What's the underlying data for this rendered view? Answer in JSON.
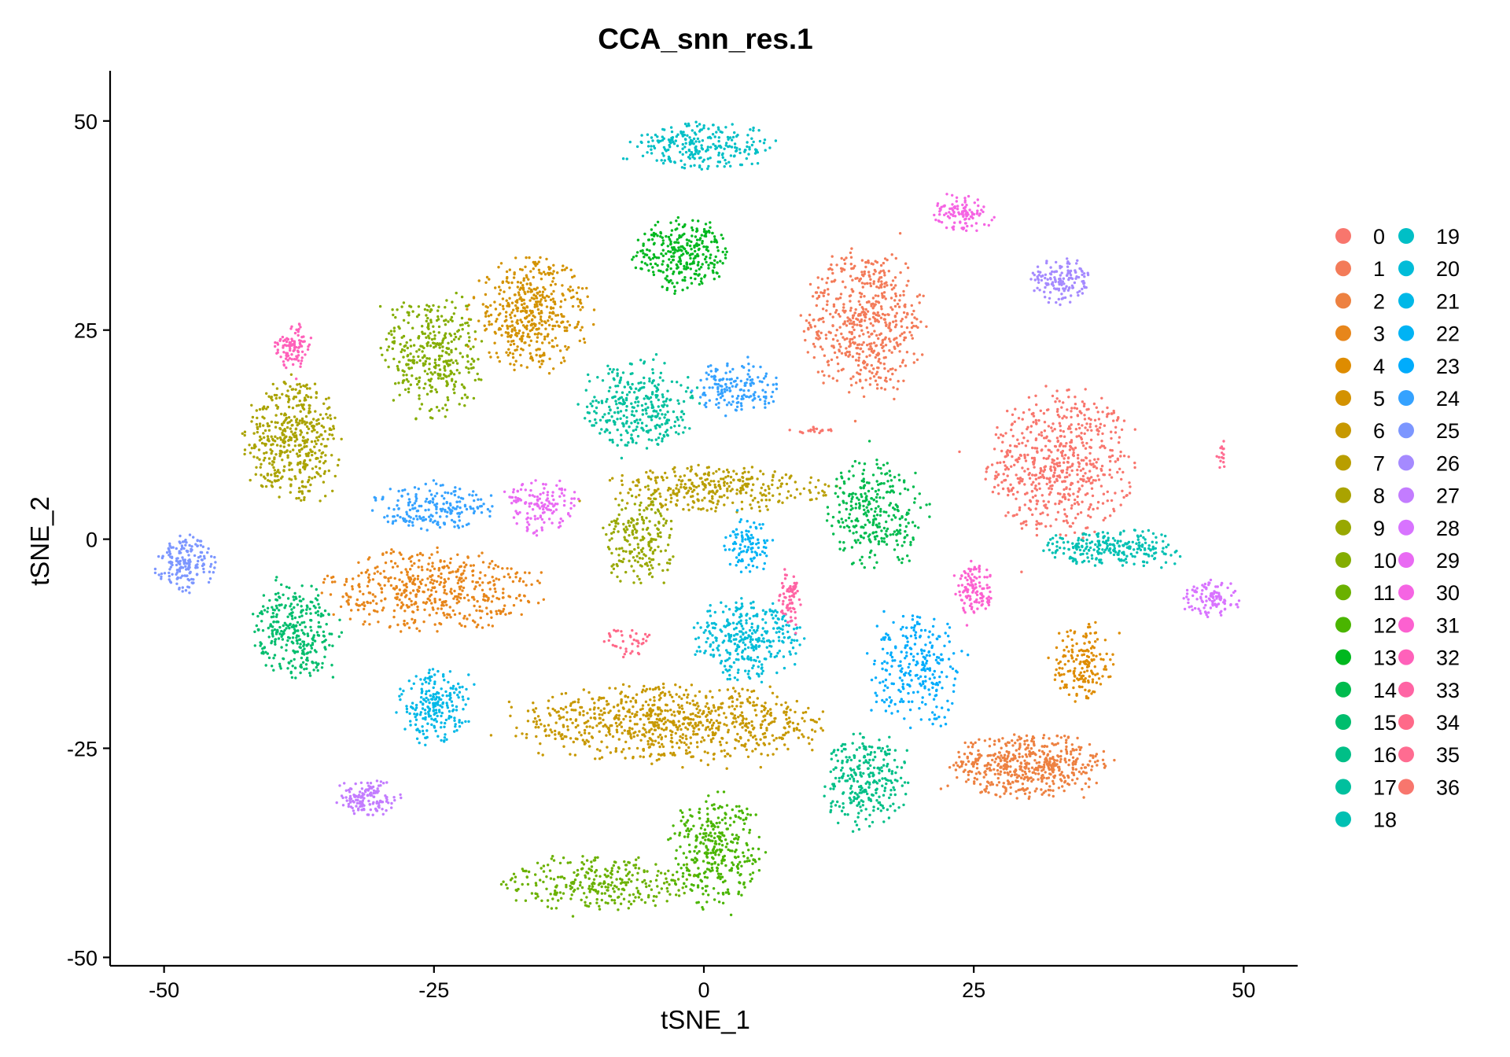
{
  "chart_data": {
    "type": "scatter",
    "title": "CCA_snn_res.1",
    "xlabel": "tSNE_1",
    "ylabel": "tSNE_2",
    "xlim": [
      -55,
      55
    ],
    "ylim": [
      -51,
      56
    ],
    "x_ticks": [
      -50,
      -25,
      0,
      25,
      50
    ],
    "x_tick_labels": [
      "-50",
      "-25",
      "0",
      "25",
      "50"
    ],
    "y_ticks": [
      -50,
      -25,
      0,
      25,
      50
    ],
    "y_tick_labels": [
      "-50",
      "-25",
      "0",
      "25",
      "50"
    ],
    "grid": false,
    "legend_position": "right",
    "legend_columns": 2,
    "series": [
      {
        "name": "0",
        "color": "#F8766D",
        "clusters": [
          {
            "cx": 33,
            "cy": 9,
            "rx": 6,
            "ry": 8,
            "n": 620
          }
        ]
      },
      {
        "name": "1",
        "color": "#F37B59",
        "clusters": [
          {
            "cx": 15,
            "cy": 26,
            "rx": 5,
            "ry": 8,
            "n": 560
          }
        ]
      },
      {
        "name": "2",
        "color": "#ED8141",
        "clusters": [
          {
            "cx": 30,
            "cy": -27,
            "rx": 6.5,
            "ry": 3.5,
            "n": 520
          }
        ]
      },
      {
        "name": "3",
        "color": "#E7861B",
        "clusters": [
          {
            "cx": -25,
            "cy": -6,
            "rx": 9,
            "ry": 4.5,
            "n": 500
          }
        ]
      },
      {
        "name": "4",
        "color": "#DE8C00",
        "clusters": [
          {
            "cx": 35,
            "cy": -15,
            "rx": 2.5,
            "ry": 4.5,
            "n": 170
          }
        ]
      },
      {
        "name": "5",
        "color": "#D39200",
        "clusters": [
          {
            "cx": -16,
            "cy": 27,
            "rx": 5,
            "ry": 6,
            "n": 460
          }
        ]
      },
      {
        "name": "6",
        "color": "#C79800",
        "clusters": [
          {
            "cx": -3,
            "cy": -22,
            "rx": 13,
            "ry": 4,
            "n": 820
          }
        ]
      },
      {
        "name": "7",
        "color": "#B99E00",
        "clusters": [
          {
            "cx": 1,
            "cy": 6,
            "rx": 9,
            "ry": 2.5,
            "n": 330
          }
        ]
      },
      {
        "name": "8",
        "color": "#AAA300",
        "clusters": [
          {
            "cx": -38,
            "cy": 12,
            "rx": 4,
            "ry": 6.5,
            "n": 460
          }
        ]
      },
      {
        "name": "9",
        "color": "#98A800",
        "clusters": [
          {
            "cx": -6,
            "cy": 0,
            "rx": 3,
            "ry": 5,
            "n": 200
          }
        ]
      },
      {
        "name": "10",
        "color": "#84AD00",
        "clusters": [
          {
            "cx": -25,
            "cy": 22,
            "rx": 4,
            "ry": 7,
            "n": 360
          }
        ]
      },
      {
        "name": "11",
        "color": "#6BB100",
        "clusters": [
          {
            "cx": -10,
            "cy": -41,
            "rx": 8,
            "ry": 3,
            "n": 300
          }
        ]
      },
      {
        "name": "12",
        "color": "#4AB500",
        "clusters": [
          {
            "cx": 1,
            "cy": -37,
            "rx": 4,
            "ry": 6,
            "n": 340
          }
        ]
      },
      {
        "name": "13",
        "color": "#00B81F",
        "clusters": [
          {
            "cx": -2,
            "cy": 34,
            "rx": 4,
            "ry": 4,
            "n": 300
          }
        ]
      },
      {
        "name": "14",
        "color": "#00BB4E",
        "clusters": [
          {
            "cx": 16,
            "cy": 3,
            "rx": 4,
            "ry": 6,
            "n": 300
          }
        ]
      },
      {
        "name": "15",
        "color": "#00BD6D",
        "clusters": [
          {
            "cx": -38,
            "cy": -11,
            "rx": 3.5,
            "ry": 5,
            "n": 320
          }
        ]
      },
      {
        "name": "16",
        "color": "#00BF87",
        "clusters": [
          {
            "cx": 15,
            "cy": -29,
            "rx": 3.5,
            "ry": 5,
            "n": 280
          }
        ]
      },
      {
        "name": "17",
        "color": "#00C09E",
        "clusters": [
          {
            "cx": -6,
            "cy": 16,
            "rx": 4.5,
            "ry": 5,
            "n": 320
          }
        ]
      },
      {
        "name": "18",
        "color": "#00C0B3",
        "clusters": [
          {
            "cx": 38,
            "cy": -1,
            "rx": 6,
            "ry": 2,
            "n": 250
          }
        ]
      },
      {
        "name": "19",
        "color": "#00BFC6",
        "clusters": [
          {
            "cx": 0,
            "cy": 47,
            "rx": 6,
            "ry": 2.5,
            "n": 250
          }
        ]
      },
      {
        "name": "20",
        "color": "#00BCD8",
        "clusters": [
          {
            "cx": 4,
            "cy": -12,
            "rx": 4.5,
            "ry": 4.5,
            "n": 320
          }
        ]
      },
      {
        "name": "21",
        "color": "#00B8E7",
        "clusters": [
          {
            "cx": -25,
            "cy": -20,
            "rx": 3,
            "ry": 4,
            "n": 220
          }
        ]
      },
      {
        "name": "22",
        "color": "#00B3F4",
        "clusters": [
          {
            "cx": 4,
            "cy": -1,
            "rx": 2,
            "ry": 3,
            "n": 100
          }
        ]
      },
      {
        "name": "23",
        "color": "#00ACFC",
        "clusters": [
          {
            "cx": 20,
            "cy": -16,
            "rx": 4,
            "ry": 6,
            "n": 260
          }
        ]
      },
      {
        "name": "24",
        "color": "#35A2FF",
        "clusters": [
          {
            "cx": -25,
            "cy": 4,
            "rx": 5,
            "ry": 2.5,
            "n": 200
          },
          {
            "cx": 3,
            "cy": 18,
            "rx": 3.5,
            "ry": 3,
            "n": 160
          }
        ]
      },
      {
        "name": "25",
        "color": "#7C96FF",
        "clusters": [
          {
            "cx": -48,
            "cy": -3,
            "rx": 2.5,
            "ry": 3,
            "n": 180
          }
        ]
      },
      {
        "name": "26",
        "color": "#A58AFF",
        "clusters": [
          {
            "cx": 33,
            "cy": 31,
            "rx": 2.5,
            "ry": 2.5,
            "n": 140
          }
        ]
      },
      {
        "name": "27",
        "color": "#C37CFF",
        "clusters": [
          {
            "cx": -31,
            "cy": -31,
            "rx": 2.5,
            "ry": 2,
            "n": 140
          }
        ]
      },
      {
        "name": "28",
        "color": "#D873FF",
        "clusters": [
          {
            "cx": 47,
            "cy": -7,
            "rx": 2.5,
            "ry": 2,
            "n": 110
          }
        ]
      },
      {
        "name": "29",
        "color": "#E96AF3",
        "clusters": [
          {
            "cx": -15,
            "cy": 4,
            "rx": 3,
            "ry": 3,
            "n": 140
          }
        ]
      },
      {
        "name": "30",
        "color": "#F564E3",
        "clusters": [
          {
            "cx": 24,
            "cy": 39,
            "rx": 2.5,
            "ry": 2,
            "n": 110
          }
        ]
      },
      {
        "name": "31",
        "color": "#FC61D0",
        "clusters": [
          {
            "cx": 25,
            "cy": -6,
            "rx": 1.5,
            "ry": 3,
            "n": 120
          }
        ]
      },
      {
        "name": "32",
        "color": "#FF61BA",
        "clusters": [
          {
            "cx": -38,
            "cy": 23,
            "rx": 1.5,
            "ry": 2.5,
            "n": 100
          }
        ]
      },
      {
        "name": "33",
        "color": "#FF64A4",
        "clusters": [
          {
            "cx": 8,
            "cy": -7,
            "rx": 1,
            "ry": 3,
            "n": 70
          }
        ]
      },
      {
        "name": "34",
        "color": "#FF6989",
        "clusters": [
          {
            "cx": -7,
            "cy": -12,
            "rx": 2,
            "ry": 2,
            "n": 40
          }
        ]
      },
      {
        "name": "35",
        "color": "#FF6C91",
        "clusters": [
          {
            "cx": 48,
            "cy": 10,
            "rx": 0.5,
            "ry": 1.5,
            "n": 15
          }
        ]
      },
      {
        "name": "36",
        "color": "#F8766D",
        "clusters": [
          {
            "cx": 10,
            "cy": 13,
            "rx": 2,
            "ry": 0.4,
            "n": 20
          }
        ]
      }
    ]
  }
}
